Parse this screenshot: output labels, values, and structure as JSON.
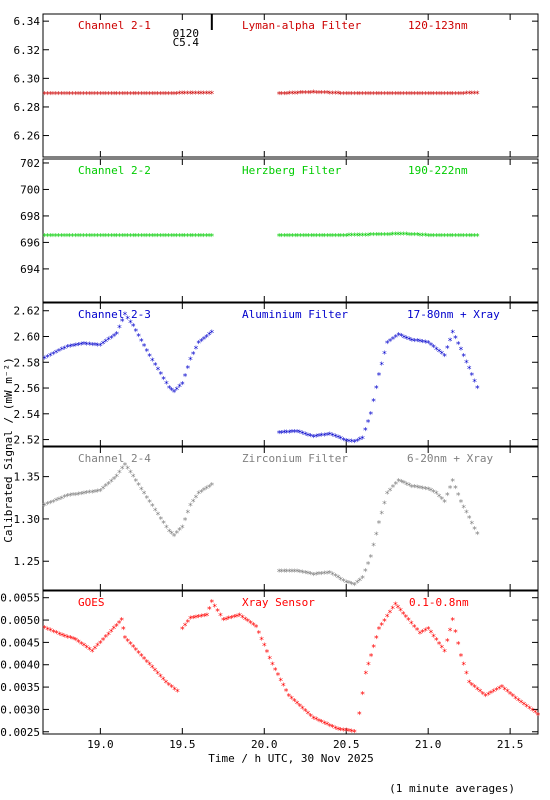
{
  "figure": {
    "ylabel": "Calibrated Signal / (mW m⁻²)",
    "xlabel": "Time / h UTC, 30 Nov 2025",
    "footnote": "(1 minute averages)",
    "xlim": [
      18.65,
      21.67
    ],
    "xticks": [
      "19.0",
      "19.5",
      "20.0",
      "20.5",
      "21.0",
      "21.5"
    ],
    "marker": {
      "x": 19.68,
      "label_top": "0120",
      "label_bottom": "C5.4"
    }
  },
  "chart_data": [
    {
      "type": "scatter",
      "panel": "Channel 2-1",
      "color": "#cc0000",
      "labels": {
        "left": "Channel 2-1",
        "center": "Lyman-alpha Filter",
        "right": "120-123nm"
      },
      "ylim": [
        6.245,
        6.345
      ],
      "yticks": [
        "6.34",
        "6.32",
        "6.30",
        "6.28",
        "6.26"
      ],
      "segments": [
        {
          "x": [
            18.66,
            19.0,
            19.3,
            19.68
          ],
          "y": [
            6.289,
            6.289,
            6.289,
            6.2895
          ]
        },
        {
          "x": [
            20.09,
            20.3,
            20.5,
            21.0,
            21.3
          ],
          "y": [
            6.289,
            6.29,
            6.289,
            6.289,
            6.2893
          ]
        }
      ]
    },
    {
      "type": "scatter",
      "panel": "Channel 2-2",
      "color": "#00cc00",
      "labels": {
        "left": "Channel 2-2",
        "center": "Herzberg Filter",
        "right": "190-222nm"
      },
      "ylim": [
        691.5,
        702.3
      ],
      "yticks": [
        "702",
        "700",
        "698",
        "696",
        "694"
      ],
      "segments": [
        {
          "x": [
            18.66,
            19.0,
            19.3,
            19.68
          ],
          "y": [
            696.5,
            696.5,
            696.5,
            696.5
          ]
        },
        {
          "x": [
            20.09,
            20.5,
            20.85,
            21.0,
            21.3
          ],
          "y": [
            696.5,
            696.5,
            696.6,
            696.5,
            696.5
          ]
        }
      ]
    },
    {
      "type": "scatter",
      "panel": "Channel 2-3",
      "color": "#0000cc",
      "labels": {
        "left": "Channel 2-3",
        "center": "Aluminium Filter",
        "right": "17-80nm + Xray"
      },
      "ylim": [
        2.515,
        2.626
      ],
      "yticks": [
        "2.62",
        "2.60",
        "2.58",
        "2.56",
        "2.54",
        "2.52"
      ],
      "segments": [
        {
          "x": [
            18.66,
            18.8,
            18.9,
            19.0,
            19.1,
            19.15,
            19.2,
            19.3,
            19.42,
            19.45,
            19.5,
            19.55,
            19.6,
            19.68
          ],
          "y": [
            2.583,
            2.592,
            2.594,
            2.593,
            2.602,
            2.617,
            2.608,
            2.585,
            2.56,
            2.557,
            2.563,
            2.582,
            2.595,
            2.603
          ]
        },
        {
          "x": [
            20.09,
            20.2,
            20.3,
            20.4,
            20.5,
            20.55,
            20.6,
            20.65,
            20.7,
            20.75,
            20.82,
            20.9,
            21.0,
            21.05,
            21.1,
            21.15,
            21.2,
            21.3
          ],
          "y": [
            2.525,
            2.526,
            2.522,
            2.524,
            2.519,
            2.518,
            2.521,
            2.54,
            2.57,
            2.595,
            2.601,
            2.597,
            2.595,
            2.59,
            2.585,
            2.603,
            2.59,
            2.56
          ]
        }
      ]
    },
    {
      "type": "scatter",
      "panel": "Channel 2-4",
      "color": "#808080",
      "labels": {
        "left": "Channel 2-4",
        "center": "Zirconium Filter",
        "right": "6-20nm + Xray"
      },
      "ylim": [
        1.216,
        1.385
      ],
      "yticks": [
        "1.35",
        "1.30",
        "1.25"
      ],
      "segments": [
        {
          "x": [
            18.66,
            18.8,
            18.9,
            19.0,
            19.1,
            19.15,
            19.2,
            19.3,
            19.42,
            19.45,
            19.5,
            19.55,
            19.6,
            19.68
          ],
          "y": [
            1.316,
            1.327,
            1.33,
            1.333,
            1.35,
            1.364,
            1.35,
            1.32,
            1.285,
            1.28,
            1.29,
            1.316,
            1.33,
            1.34
          ]
        },
        {
          "x": [
            20.09,
            20.2,
            20.3,
            20.4,
            20.5,
            20.55,
            20.6,
            20.65,
            20.7,
            20.75,
            20.82,
            20.9,
            21.0,
            21.05,
            21.1,
            21.15,
            21.2,
            21.3
          ],
          "y": [
            1.238,
            1.238,
            1.234,
            1.236,
            1.225,
            1.222,
            1.23,
            1.255,
            1.295,
            1.33,
            1.345,
            1.338,
            1.335,
            1.33,
            1.32,
            1.345,
            1.32,
            1.282
          ]
        }
      ]
    },
    {
      "type": "scatter",
      "panel": "GOES",
      "color": "#ff0000",
      "labels": {
        "left": "GOES",
        "center": "Xray Sensor",
        "right": "0.1-0.8nm"
      },
      "ylim": [
        0.00245,
        0.00565
      ],
      "yticks": [
        "0.0055",
        "0.0050",
        "0.0045",
        "0.0040",
        "0.0035",
        "0.0030",
        "0.0025"
      ],
      "segments": [
        {
          "x": [
            18.66,
            18.75,
            18.85,
            18.95,
            19.05,
            19.13,
            19.15,
            19.25,
            19.3,
            19.4,
            19.47
          ],
          "y": [
            0.00482,
            0.00468,
            0.00455,
            0.0043,
            0.00468,
            0.005,
            0.0046,
            0.0042,
            0.004,
            0.0036,
            0.0034
          ]
        },
        {
          "x": [
            19.5,
            19.55,
            19.65,
            19.68,
            19.75,
            19.85,
            19.95,
            20.05,
            20.15,
            20.3,
            20.45,
            20.55
          ],
          "y": [
            0.0048,
            0.00503,
            0.0051,
            0.0054,
            0.005,
            0.0051,
            0.00485,
            0.004,
            0.0033,
            0.0028,
            0.00255,
            0.0025
          ]
        },
        {
          "x": [
            20.58,
            20.62,
            20.7,
            20.8,
            20.88,
            20.95,
            21.0,
            21.05,
            21.1,
            21.15,
            21.2,
            21.25,
            21.35,
            21.45,
            21.55,
            21.67
          ],
          "y": [
            0.0029,
            0.0038,
            0.0048,
            0.00535,
            0.005,
            0.0047,
            0.0048,
            0.00455,
            0.0043,
            0.005,
            0.0042,
            0.0036,
            0.0033,
            0.0035,
            0.0032,
            0.00288
          ]
        }
      ]
    }
  ]
}
